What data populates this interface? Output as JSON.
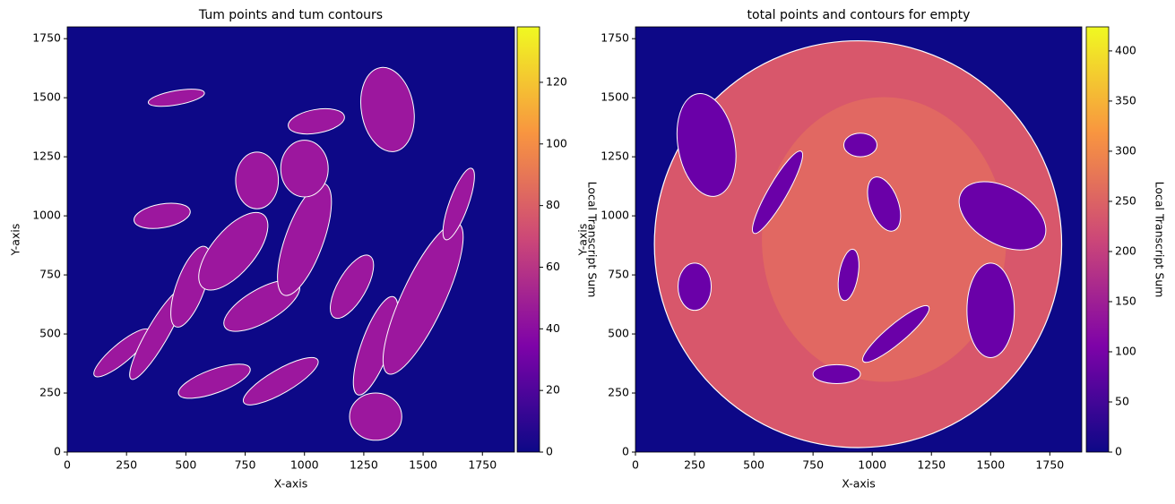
{
  "chart_data": [
    {
      "type": "heatmap",
      "title": "Tum points and tum contours",
      "xlabel": "X-axis",
      "ylabel": "Y-axis",
      "xlim": [
        0,
        1885
      ],
      "ylim": [
        0,
        1800
      ],
      "xticks": [
        0,
        250,
        500,
        750,
        1000,
        1250,
        1500,
        1750
      ],
      "yticks": [
        0,
        250,
        500,
        750,
        1000,
        1250,
        1500,
        1750
      ],
      "colormap": "plasma",
      "colorbar": {
        "label": "Local Transcript Sum",
        "lim": [
          0,
          138
        ],
        "ticks": [
          0,
          20,
          40,
          60,
          80,
          100,
          120
        ]
      }
    },
    {
      "type": "heatmap",
      "title": "total points and contours for empty",
      "xlabel": "X-axis",
      "ylabel": "Y-axis",
      "xlim": [
        0,
        1885
      ],
      "ylim": [
        0,
        1800
      ],
      "xticks": [
        0,
        250,
        500,
        750,
        1000,
        1250,
        1500,
        1750
      ],
      "yticks": [
        0,
        250,
        500,
        750,
        1000,
        1250,
        1500,
        1750
      ],
      "colormap": "plasma",
      "colorbar": {
        "label": "Local Transcript Sum",
        "lim": [
          0,
          424
        ],
        "ticks": [
          0,
          50,
          100,
          150,
          200,
          250,
          300,
          350,
          400
        ]
      }
    }
  ]
}
